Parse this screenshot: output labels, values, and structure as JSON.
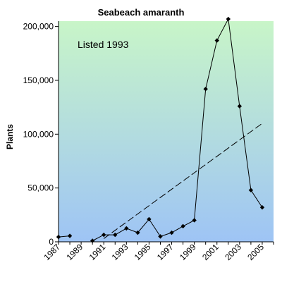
{
  "chart_data": {
    "type": "line",
    "title": "Seabeach amaranth",
    "xlabel": "",
    "ylabel": "Plants",
    "annotation": "Listed 1993",
    "xlim": [
      1987,
      2006
    ],
    "ylim": [
      0,
      205000
    ],
    "x_ticks": [
      "1987",
      "1989",
      "1991",
      "1993",
      "1995",
      "1997",
      "1999",
      "2001",
      "2003",
      "2005"
    ],
    "y_ticks": [
      "0",
      "50,000",
      "100,000",
      "150,000",
      "200,000"
    ],
    "y_tick_values": [
      0,
      50000,
      100000,
      150000,
      200000
    ],
    "series": [
      {
        "segments": [
          {
            "x": [
              1987,
              1988
            ],
            "y": [
              4500,
              5500
            ]
          },
          {
            "x": [
              1990,
              1991,
              1992,
              1993,
              1994,
              1995,
              1996,
              1997,
              1998,
              1999,
              2000,
              2001,
              2002,
              2003,
              2004,
              2005
            ],
            "y": [
              1000,
              6500,
              6500,
              12500,
              8500,
              21000,
              5000,
              8500,
              14500,
              20000,
              142000,
              187000,
              207000,
              126000,
              48000,
              32000
            ]
          }
        ]
      }
    ],
    "trendline": {
      "x": [
        1991,
        2005
      ],
      "y": [
        3000,
        110000
      ],
      "style": "dashed"
    },
    "background_gradient": [
      "#c8f5c8",
      "#9ec4f5"
    ],
    "grid": false
  }
}
